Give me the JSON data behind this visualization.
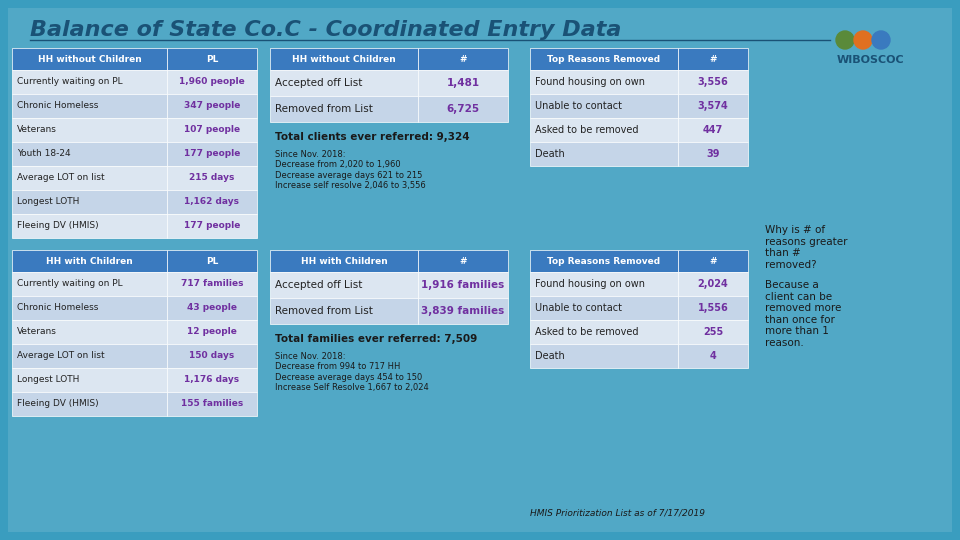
{
  "title": "Balance of State Co.C - Coordinated Entry Data",
  "bg_color": "#3a9dbf",
  "header_color": "#3a7abf",
  "row_light": "#dce6f1",
  "row_medium": "#b8cce4",
  "text_dark": "#1a1a2e",
  "text_purple": "#7030a0",
  "text_white": "#ffffff",
  "table1_header": [
    "HH without Children",
    "PL"
  ],
  "table1_rows": [
    [
      "Currently waiting on PL",
      "1,960 people"
    ],
    [
      "Chronic Homeless",
      "347 people"
    ],
    [
      "Veterans",
      "107 people"
    ],
    [
      "Youth 18-24",
      "177 people"
    ],
    [
      "Average LOT on list",
      "215 days"
    ],
    [
      "Longest LOTH",
      "1,162 days"
    ],
    [
      "Fleeing DV (HMIS)",
      "177 people"
    ]
  ],
  "table2_header": [
    "HH without Children",
    "#"
  ],
  "table2_rows": [
    [
      "Accepted off List",
      "1,481"
    ],
    [
      "Removed from List",
      "6,725"
    ]
  ],
  "table2_total": "Total clients ever referred: 9,324",
  "table2_note": "Since Nov. 2018:\nDecrease from 2,020 to 1,960\nDecrease average days 621 to 215\nIncrease self resolve 2,046 to 3,556",
  "table3_header": [
    "Top Reasons Removed",
    "#"
  ],
  "table3_rows": [
    [
      "Found housing on own",
      "3,556"
    ],
    [
      "Unable to contact",
      "3,574"
    ],
    [
      "Asked to be removed",
      "447"
    ],
    [
      "Death",
      "39"
    ]
  ],
  "table4_header": [
    "HH with Children",
    "PL"
  ],
  "table4_rows": [
    [
      "Currently waiting on PL",
      "717 families"
    ],
    [
      "Chronic Homeless",
      "43 people"
    ],
    [
      "Veterans",
      "12 people"
    ],
    [
      "Average LOT on list",
      "150 days"
    ],
    [
      "Longest LOTH",
      "1,176 days"
    ],
    [
      "Fleeing DV (HMIS)",
      "155 families"
    ]
  ],
  "table5_header": [
    "HH with Children",
    "#"
  ],
  "table5_rows": [
    [
      "Accepted off List",
      "1,916 families"
    ],
    [
      "Removed from List",
      "3,839 families"
    ]
  ],
  "table5_total": "Total families ever referred: 7,509",
  "table5_note": "Since Nov. 2018:\nDecrease from 994 to 717 HH\nDecrease average days 454 to 150\nIncrease Self Resolve 1,667 to 2,024",
  "table6_header": [
    "Top Reasons Removed",
    "#"
  ],
  "table6_rows": [
    [
      "Found housing on own",
      "2,024"
    ],
    [
      "Unable to contact",
      "1,556"
    ],
    [
      "Asked to be removed",
      "255"
    ],
    [
      "Death",
      "4"
    ]
  ],
  "side_note1": "Why is # of\nreasons greater\nthan #\nremoved?",
  "side_note2": "Because a\nclient can be\nremoved more\nthan once for\nmore than 1\nreason.",
  "footer": "HMIS Prioritization List as of 7/17/2019"
}
